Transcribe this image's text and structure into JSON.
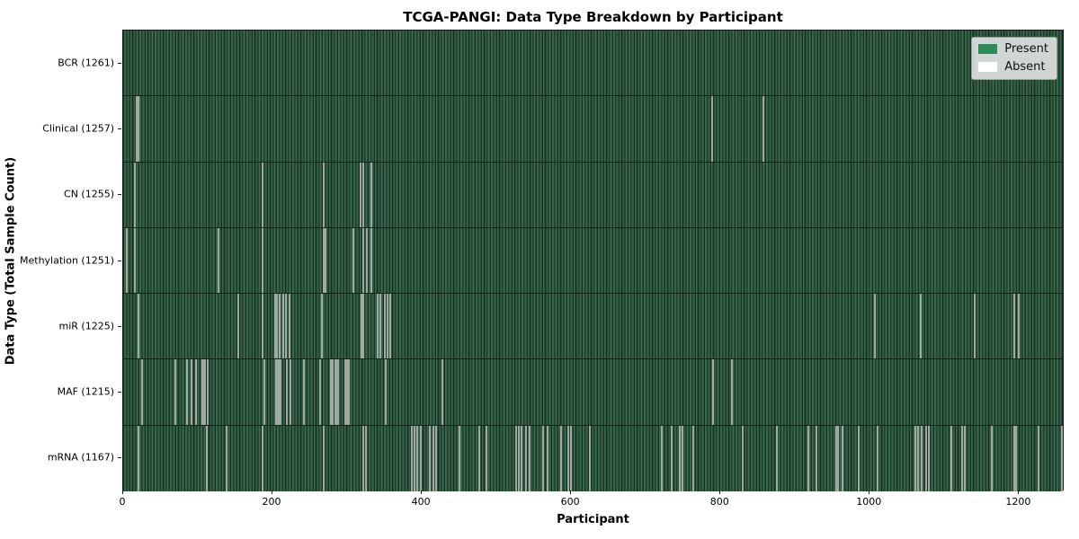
{
  "chart_data": {
    "type": "heatmap",
    "title": "TCGA-PANGI: Data Type Breakdown by Participant",
    "xlabel": "Participant",
    "ylabel": "Data Type (Total Sample Count)",
    "x_ticks": [
      0,
      200,
      400,
      600,
      800,
      1000,
      1200
    ],
    "x_range": [
      0,
      1261
    ],
    "grid": false,
    "legend": {
      "position": "upper right",
      "entries": [
        {
          "label": "Present",
          "color": "#2e8b57"
        },
        {
          "label": "Absent",
          "color": "#ffffff"
        }
      ]
    },
    "colors": {
      "present_fill": "#2e8b57",
      "absent_fill": "#ffffff",
      "bar_edge": "#16301f",
      "rendered_absent_line": "#c7ccc7",
      "legend_background": "#dee2de",
      "axis": "#1a1a1a"
    },
    "rows": [
      {
        "label": "BCR",
        "total_samples": 1261,
        "tick_label": "BCR (1261)",
        "absent_at": []
      },
      {
        "label": "Clinical",
        "total_samples": 1257,
        "tick_label": "Clinical (1257)",
        "absent_at": [
          18,
          20,
          789,
          858
        ]
      },
      {
        "label": "CN",
        "total_samples": 1255,
        "tick_label": "CN (1255)",
        "absent_at": [
          16,
          187,
          269,
          318,
          322,
          333
        ]
      },
      {
        "label": "Methylation",
        "total_samples": 1251,
        "tick_label": "Methylation (1251)",
        "absent_at": [
          5,
          16,
          128,
          187,
          269,
          271,
          308,
          322,
          326,
          333
        ]
      },
      {
        "label": "miR",
        "total_samples": 1225,
        "tick_label": "miR (1225)",
        "absent_at": [
          20,
          154,
          187,
          203,
          206,
          210,
          214,
          218,
          223,
          266,
          319,
          322,
          341,
          345,
          350,
          354,
          358,
          1007,
          1068,
          1141,
          1193,
          1199
        ]
      },
      {
        "label": "MAF",
        "total_samples": 1215,
        "tick_label": "MAF (1215)",
        "absent_at": [
          25,
          70,
          85,
          91,
          97,
          106,
          108,
          110,
          113,
          189,
          205,
          207,
          209,
          211,
          219,
          224,
          242,
          264,
          278,
          281,
          284,
          286,
          288,
          298,
          300,
          302,
          352,
          428,
          790,
          815
        ]
      },
      {
        "label": "mRNA",
        "total_samples": 1167,
        "tick_label": "mRNA (1167)",
        "absent_at": [
          20,
          112,
          138,
          187,
          269,
          322,
          325,
          387,
          390,
          394,
          399,
          411,
          415,
          419,
          450,
          477,
          487,
          526,
          530,
          534,
          540,
          544,
          562,
          568,
          586,
          596,
          600,
          625,
          721,
          735,
          746,
          749,
          764,
          830,
          876,
          918,
          928,
          955,
          958,
          963,
          985,
          1011,
          1061,
          1065,
          1070,
          1075,
          1079,
          1109,
          1124,
          1127,
          1164,
          1193,
          1196,
          1226,
          1257
        ]
      }
    ]
  }
}
